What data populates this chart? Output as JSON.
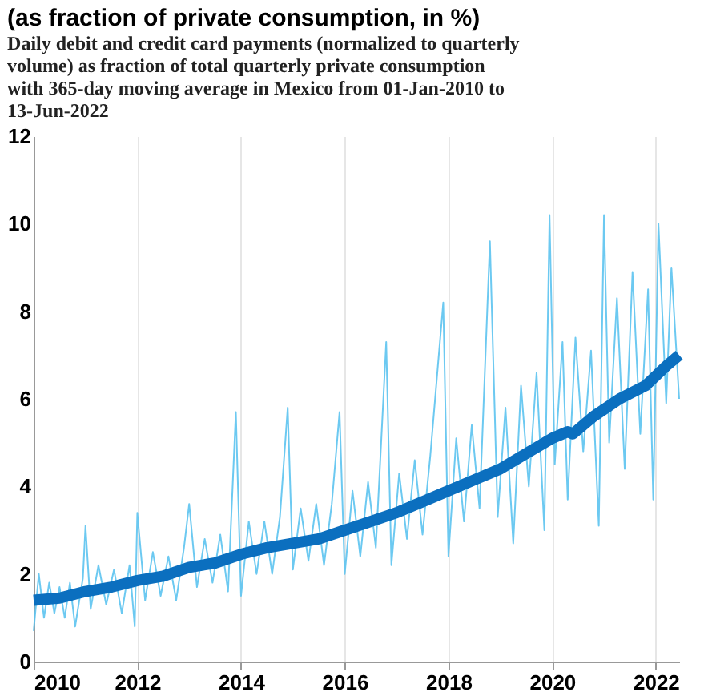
{
  "chart_data": {
    "type": "line",
    "title": "(as fraction of private consumption, in %)",
    "subtitle": "Daily debit and credit card payments (normalized to quarterly volume) as fraction of total quarterly private consumption with 365-day moving average in Mexico from 01-Jan-2010 to 13-Jun-2022",
    "series": [
      {
        "color": "#5cc3ef",
        "x": [
          2010.0,
          2010.1,
          2010.2,
          2010.3,
          2010.4,
          2010.5,
          2010.6,
          2010.7,
          2010.8,
          2010.95,
          2011.0,
          2011.1,
          2011.25,
          2011.4,
          2011.55,
          2011.7,
          2011.85,
          2011.95,
          2012.0,
          2012.15,
          2012.3,
          2012.45,
          2012.6,
          2012.75,
          2012.9,
          2013.0,
          2013.15,
          2013.3,
          2013.45,
          2013.6,
          2013.75,
          2013.9,
          2014.0,
          2014.15,
          2014.3,
          2014.45,
          2014.6,
          2014.75,
          2014.9,
          2015.0,
          2015.15,
          2015.3,
          2015.45,
          2015.6,
          2015.75,
          2015.9,
          2016.0,
          2016.15,
          2016.3,
          2016.45,
          2016.6,
          2016.8,
          2016.9,
          2017.05,
          2017.2,
          2017.35,
          2017.5,
          2017.65,
          2017.9,
          2018.0,
          2018.15,
          2018.3,
          2018.45,
          2018.6,
          2018.8,
          2018.95,
          2019.1,
          2019.25,
          2019.4,
          2019.55,
          2019.7,
          2019.85,
          2019.95,
          2020.05,
          2020.2,
          2020.3,
          2020.45,
          2020.6,
          2020.75,
          2020.9,
          2021.0,
          2021.1,
          2021.25,
          2021.4,
          2021.55,
          2021.7,
          2021.85,
          2021.95,
          2022.05,
          2022.2,
          2022.3,
          2022.45
        ],
        "values": [
          0.7,
          2.0,
          1.0,
          1.8,
          1.1,
          1.7,
          1.0,
          1.8,
          0.8,
          1.9,
          3.1,
          1.2,
          2.2,
          1.3,
          2.1,
          1.1,
          2.2,
          0.8,
          3.4,
          1.4,
          2.5,
          1.5,
          2.4,
          1.4,
          2.6,
          3.6,
          1.7,
          2.8,
          1.8,
          2.9,
          1.6,
          5.7,
          1.5,
          3.2,
          2.0,
          3.2,
          2.0,
          3.3,
          5.8,
          2.1,
          3.5,
          2.3,
          3.6,
          2.2,
          3.6,
          5.7,
          2.0,
          3.9,
          2.4,
          4.1,
          2.6,
          7.3,
          2.2,
          4.3,
          2.8,
          4.6,
          2.9,
          4.7,
          8.2,
          2.4,
          5.1,
          3.2,
          5.4,
          3.5,
          9.6,
          3.3,
          5.8,
          2.7,
          6.3,
          4.0,
          6.6,
          3.0,
          10.2,
          4.5,
          7.3,
          3.7,
          7.4,
          4.8,
          7.1,
          3.1,
          10.2,
          5.0,
          8.3,
          4.4,
          8.9,
          5.2,
          8.5,
          3.7,
          10.0,
          5.9,
          9.0,
          6.0
        ]
      },
      {
        "color": "#0b6fbf",
        "x": [
          2010.0,
          2010.5,
          2011.0,
          2011.5,
          2012.0,
          2012.5,
          2013.0,
          2013.5,
          2014.0,
          2014.5,
          2015.0,
          2015.5,
          2016.0,
          2016.5,
          2017.0,
          2017.5,
          2018.0,
          2018.5,
          2019.0,
          2019.5,
          2020.0,
          2020.3,
          2020.4,
          2020.8,
          2021.3,
          2021.8,
          2022.2,
          2022.45
        ],
        "values": [
          1.4,
          1.45,
          1.6,
          1.7,
          1.85,
          1.95,
          2.15,
          2.25,
          2.45,
          2.6,
          2.7,
          2.8,
          3.0,
          3.2,
          3.4,
          3.65,
          3.9,
          4.15,
          4.4,
          4.75,
          5.1,
          5.25,
          5.2,
          5.6,
          6.0,
          6.3,
          6.75,
          7.0
        ]
      }
    ],
    "xlim": [
      2010,
      2022.45
    ],
    "xticks": [
      2010,
      2012,
      2014,
      2016,
      2018,
      2020,
      2022
    ],
    "ylim": [
      0,
      12
    ],
    "yticks": [
      0,
      2,
      4,
      6,
      8,
      10,
      12
    ],
    "grid": "x"
  }
}
